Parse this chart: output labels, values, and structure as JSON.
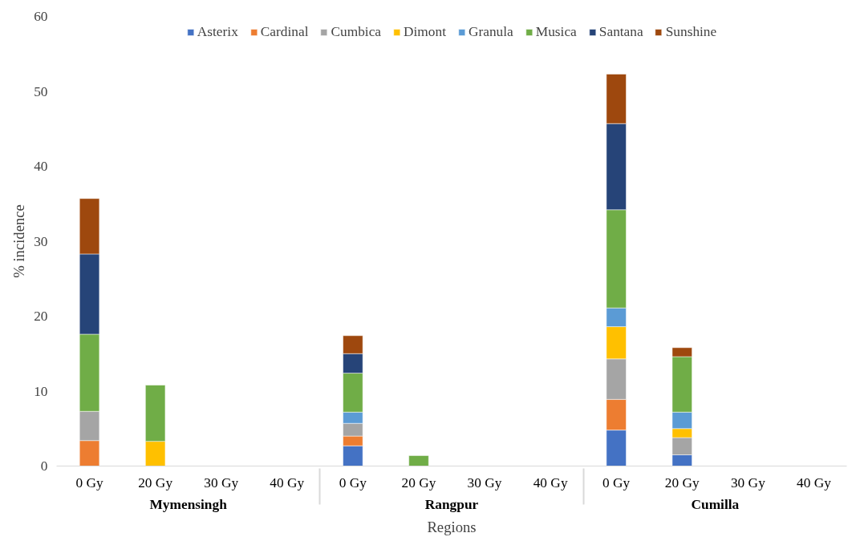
{
  "chart_data": {
    "type": "bar",
    "stacked": true,
    "xlabel": "Regions",
    "ylabel": "% incidence",
    "categories": [
      "0 Gy",
      "20 Gy",
      "30 Gy",
      "40 Gy",
      "0 Gy",
      "20 Gy",
      "30 Gy",
      "40 Gy",
      "0 Gy",
      "20 Gy",
      "30 Gy",
      "40 Gy"
    ],
    "annotations": [
      "Mymensingh",
      "Rangpur",
      "Cumilla"
    ],
    "ylim": [
      0,
      60
    ],
    "yticks": [
      0,
      10,
      20,
      30,
      40,
      50,
      60
    ],
    "grid": false,
    "legend": "top",
    "series": [
      {
        "name": "Asterix",
        "color": "#4472c4",
        "values": [
          null,
          null,
          null,
          null,
          2.7,
          null,
          null,
          null,
          4.8,
          1.5,
          null,
          null
        ]
      },
      {
        "name": "Cardinal",
        "color": "#ed7d31",
        "values": [
          3.4,
          null,
          null,
          null,
          1.3,
          null,
          null,
          null,
          4.1,
          null,
          null,
          null
        ]
      },
      {
        "name": "Cumbica",
        "color": "#a5a5a5",
        "values": [
          3.9,
          null,
          null,
          null,
          1.7,
          null,
          null,
          null,
          5.4,
          2.3,
          null,
          null
        ]
      },
      {
        "name": "Dimont",
        "color": "#ffc000",
        "values": [
          null,
          3.3,
          null,
          null,
          null,
          null,
          null,
          null,
          4.3,
          1.2,
          null,
          null
        ]
      },
      {
        "name": "Granula",
        "color": "#5b9bd5",
        "values": [
          null,
          null,
          null,
          null,
          1.5,
          null,
          null,
          null,
          2.5,
          2.2,
          null,
          null
        ]
      },
      {
        "name": "Musica",
        "color": "#70ad47",
        "values": [
          10.3,
          7.5,
          null,
          null,
          5.2,
          1.4,
          null,
          null,
          13.1,
          7.4,
          null,
          null
        ]
      },
      {
        "name": "Santana",
        "color": "#264478",
        "values": [
          10.7,
          null,
          null,
          null,
          2.6,
          null,
          null,
          null,
          11.5,
          null,
          null,
          null
        ]
      },
      {
        "name": "Sunshine",
        "color": "#9e480e",
        "values": [
          7.4,
          null,
          null,
          null,
          2.4,
          null,
          null,
          null,
          6.6,
          1.2,
          null,
          null
        ]
      }
    ]
  }
}
